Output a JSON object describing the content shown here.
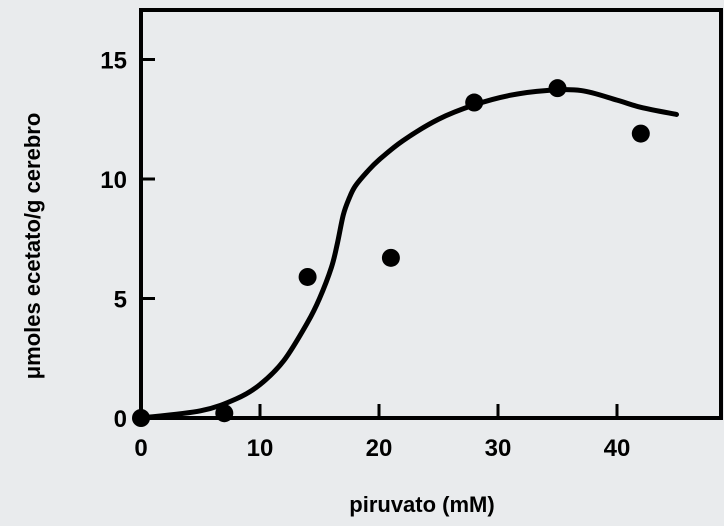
{
  "chart_data": {
    "type": "scatter",
    "title": "",
    "xlabel": "piruvato (mM)",
    "ylabel": "μmoles ecetato/g cerebro",
    "xlim": [
      0,
      50
    ],
    "ylim": [
      0,
      17
    ],
    "xticks": [
      0,
      10,
      20,
      30,
      40
    ],
    "yticks": [
      0,
      5,
      10,
      15
    ],
    "grid": false,
    "legend": "none",
    "series": [
      {
        "kind": "points",
        "x": [
          0,
          7,
          14,
          21,
          28,
          35,
          42
        ],
        "y": [
          0,
          0.2,
          5.9,
          6.7,
          13.2,
          13.8,
          11.9
        ]
      },
      {
        "kind": "fit-line",
        "x": [
          0,
          5,
          8,
          10,
          12,
          14,
          15,
          16,
          16.5,
          17,
          17.5,
          18,
          19,
          20,
          22,
          25,
          28,
          31,
          34,
          37,
          40,
          42,
          45
        ],
        "y": [
          0,
          0.3,
          0.8,
          1.4,
          2.4,
          4.0,
          5.0,
          6.3,
          7.3,
          8.5,
          9.2,
          9.7,
          10.3,
          10.8,
          11.6,
          12.5,
          13.1,
          13.5,
          13.7,
          13.7,
          13.3,
          13.0,
          12.7
        ]
      }
    ],
    "colors": {
      "marks": "#000000",
      "background": "#e9ebed",
      "plot_frame": "#000000"
    }
  }
}
